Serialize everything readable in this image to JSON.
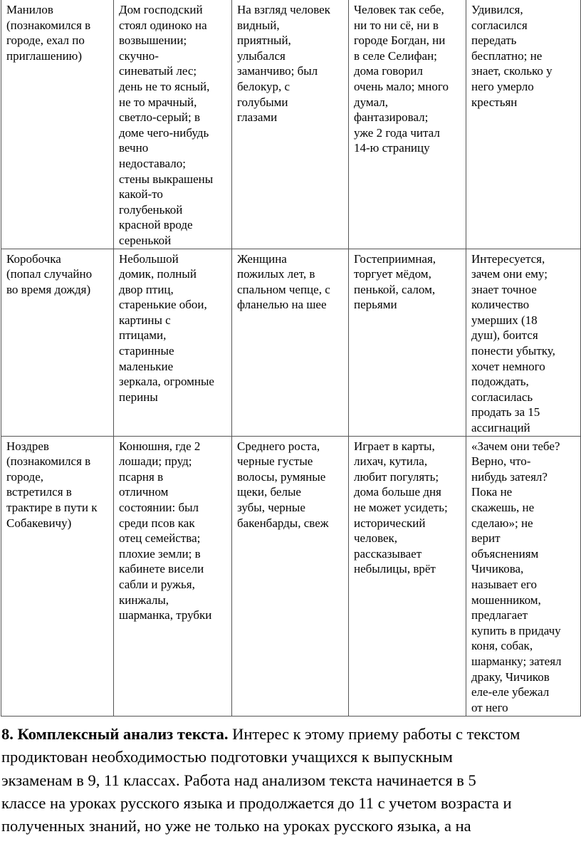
{
  "table": {
    "rows": [
      [
        "Манилов\n(познакомился в\nгороде, ехал по\nприглашению)",
        "Дом господский\nстоял одиноко на\nвозвышении;\nскучно-\nсиневатый лес;\nдень не то ясный,\nне то мрачный,\nсветло-серый; в\nдоме чего-нибудь\nвечно\nнедоставало;\nстены выкрашены\nкакой-то\nголубенькой\nкрасной вроде\nсеренькой",
        "На взгляд человек\nвидный,\nприятный,\nулыбался\nзаманчиво; был\nбелокур, с\nголубыми\nглазами",
        "Человек так себе,\nни то ни сё, ни в\nгороде Богдан, ни\nв селе Селифан;\nдома говорил\nочень мало; много\nдумал,\nфантазировал;\nуже 2 года читал\n14-ю страницу",
        "Удивился,\nсогласился\nпередать\nбесплатно; не\nзнает, сколько у\nнего умерло\nкрестьян"
      ],
      [
        "Коробочка\n(попал случайно\nво время дождя)",
        "Небольшой\nдомик, полный\nдвор птиц,\nстаренькие обои,\nкартины с\nптицами,\nстаринные\nмаленькие\nзеркала, огромные\nперины",
        "Женщина\nпожилых лет, в\nспальном чепце, с\nфланелью на шее",
        "Гостеприимная,\nторгует мёдом,\nпенькой, салом,\nперьями",
        "Интересуется,\nзачем они ему;\nзнает точное\nколичество\nумерших (18\nдуш), боится\nпонести убытку,\nхочет немного\nподождать,\nсогласилась\nпродать за 15\nассигнаций"
      ],
      [
        "Ноздрев\n(познакомился в\nгороде,\nвстретился в\nтрактире в пути к\nСобакевичу)",
        "Конюшня, где 2\nлошади; пруд;\nпсарня в\nотличном\nсостоянии: был\nсреди псов как\nотец семейства;\nплохие земли; в\nкабинете висели\nсабли и ружья,\nкинжалы,\nшарманка, трубки",
        "Среднего роста,\nчерные густые\nволосы, румяные\nщеки, белые\nзубы, черные\nбакенбарды, свеж",
        "Играет в карты,\nлихач, кутила,\nлюбит погулять;\nдома больше дня\nне может усидеть;\nисторический\nчеловек,\nрассказывает\nнебылицы, врёт",
        "«Зачем они тебе?\nВерно, что-\nнибудь затеял?\nПока не\nскажешь, не\nсделаю»; не\nверит\nобъяснениям\nЧичикова,\nназывает его\nмошенником,\nпредлагает\nкупить в придачу\nконя, собак,\nшарманку; затеял\nдраку, Чичиков\nеле-еле убежал\nот него"
      ]
    ]
  },
  "paragraph": {
    "heading": "8. Комплексный анализ текста.",
    "text": " Интерес к этому приему работы с текстом\nпродиктован необходимостью подготовки учащихся к выпускным\nэкзаменам в 9, 11 классах. Работа над анализом текста начинается в 5\nклассе на уроках русского языка и продолжается до 11 с учетом возраста и\nполученных знаний, но уже не только на уроках русского языка, а на"
  }
}
